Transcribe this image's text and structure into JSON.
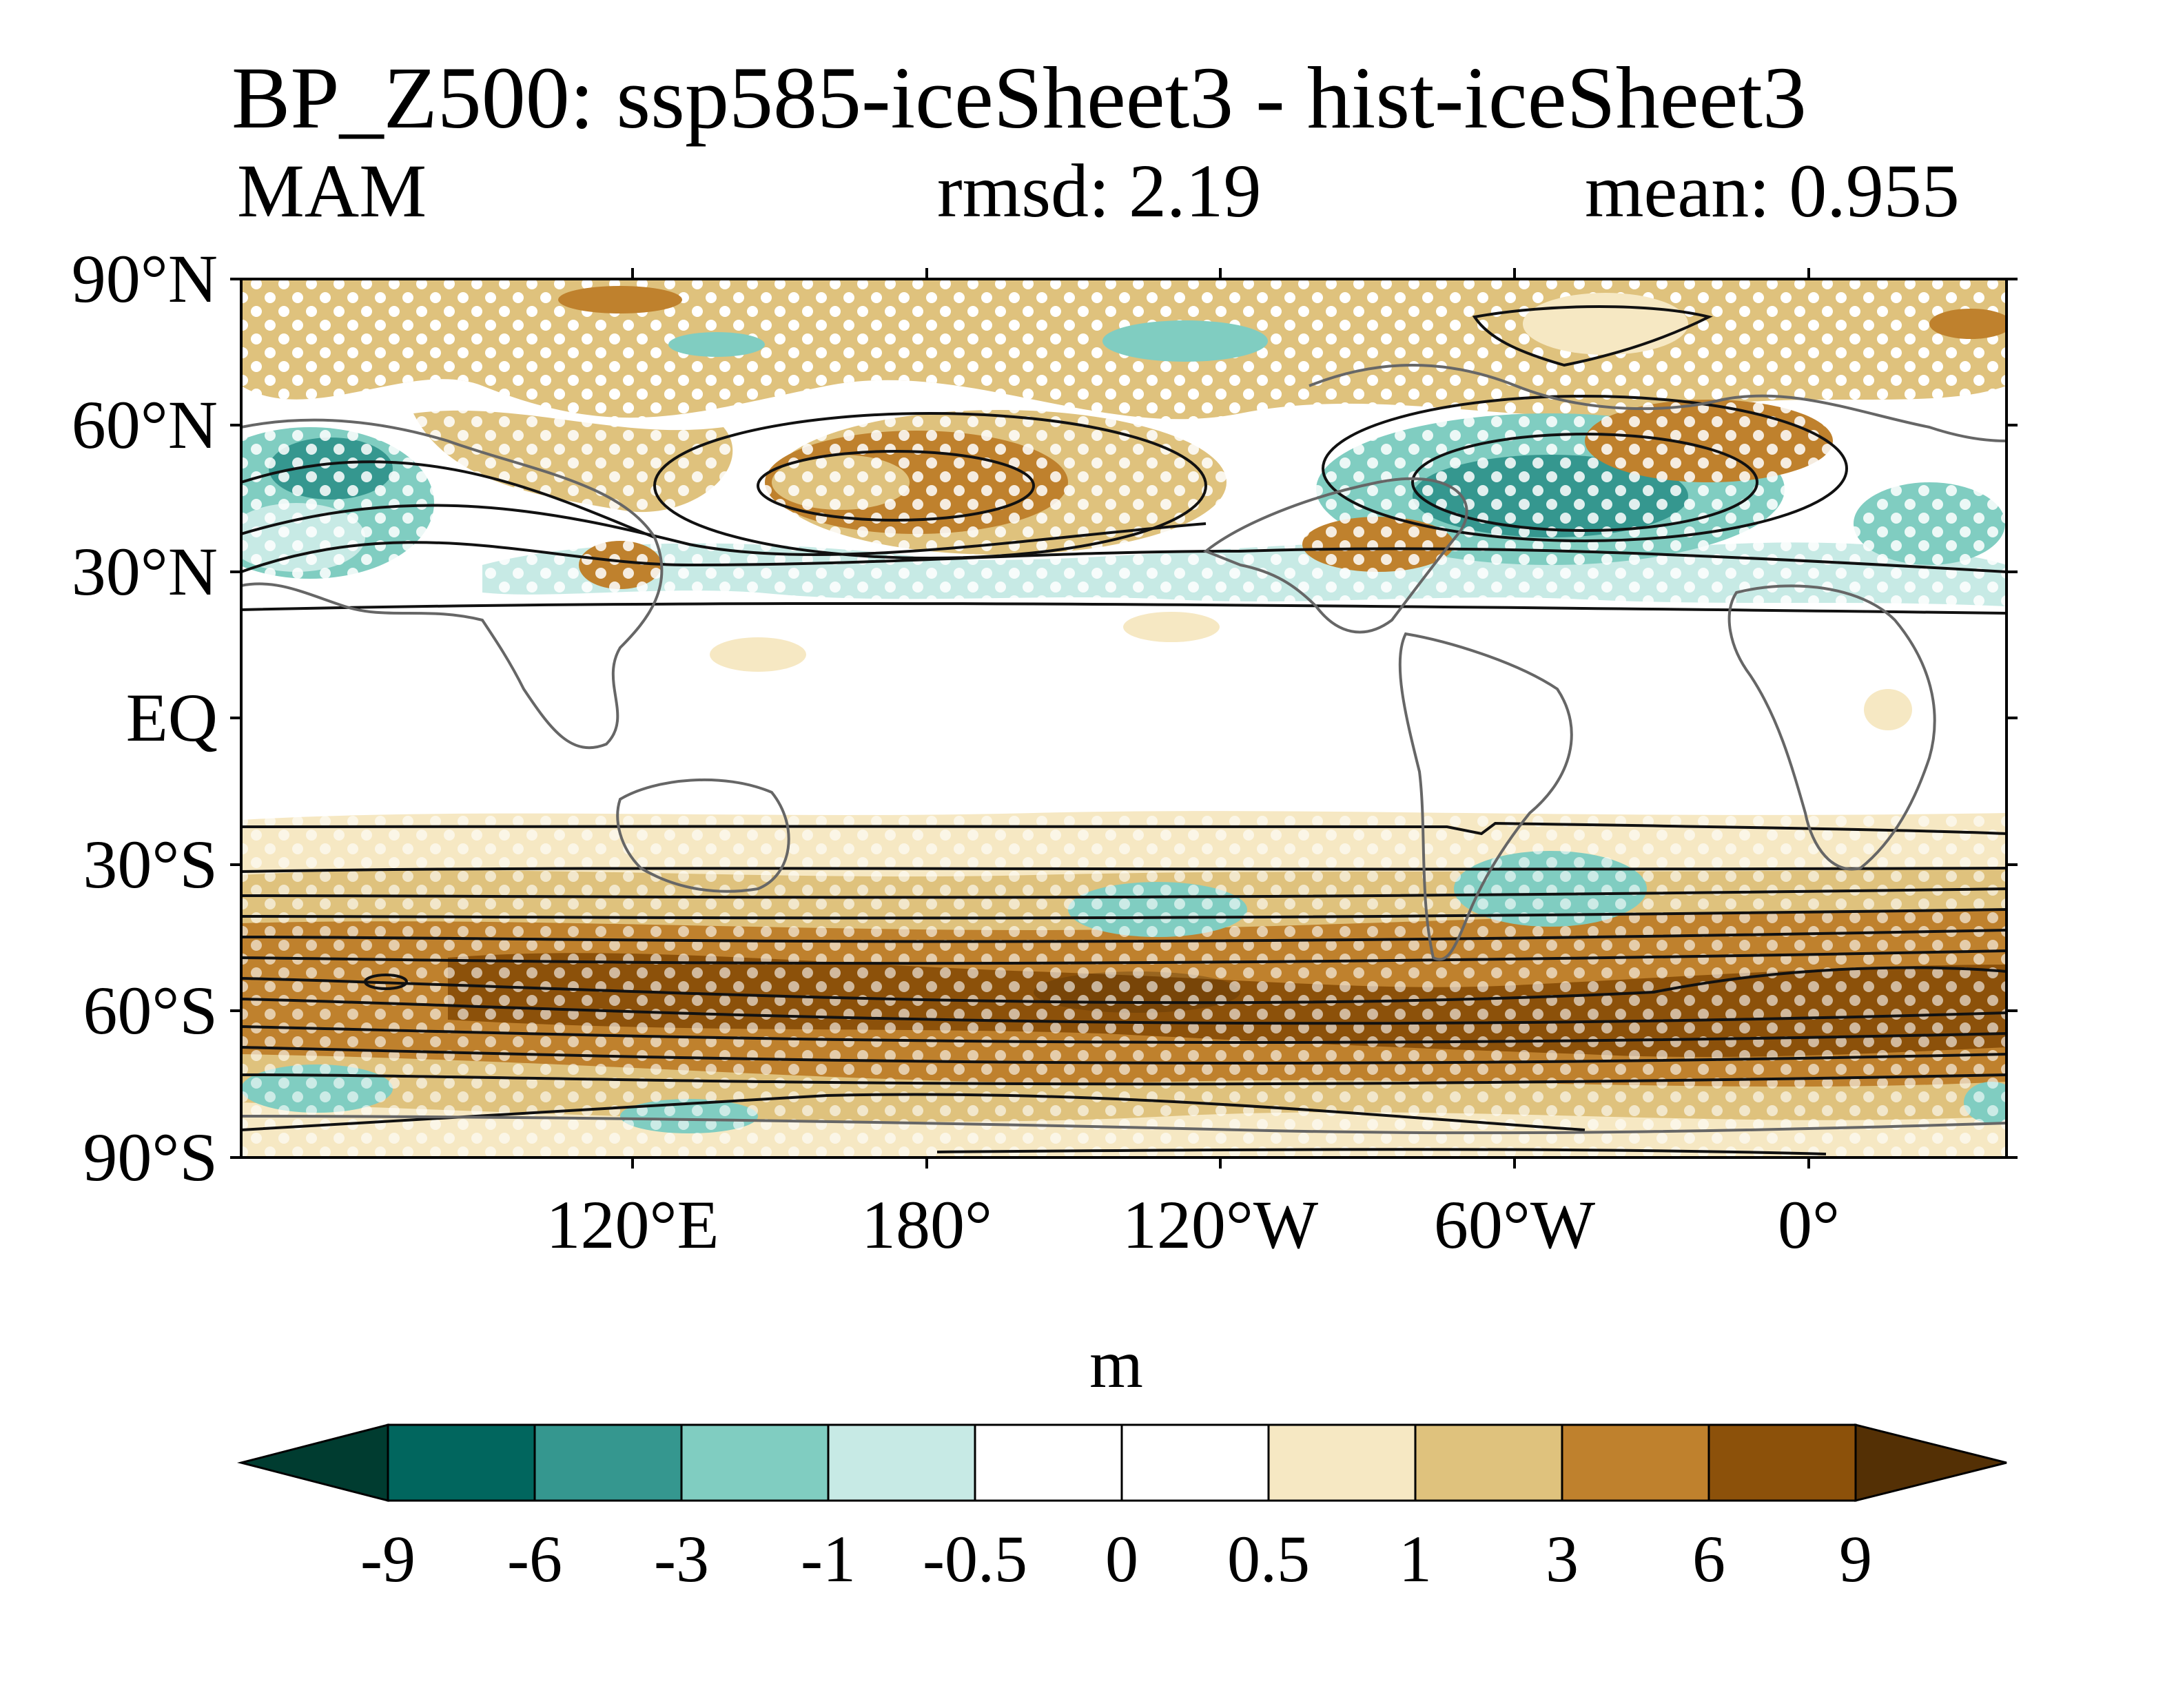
{
  "header": {
    "title": "BP_Z500: ssp585-iceSheet3 - hist-iceSheet3",
    "season": "MAM",
    "rmsd": "rmsd: 2.19",
    "mean": "mean: 0.955"
  },
  "map": {
    "projection": "cylindrical equidistant",
    "lat_labels": [
      "90°N",
      "60°N",
      "30°N",
      "EQ",
      "30°S",
      "60°S",
      "90°S"
    ],
    "lon_labels": [
      "120°E",
      "180°",
      "120°W",
      "60°W",
      "0°"
    ],
    "stippling": "white dots mark significant regions",
    "contours": "black lines: climatology"
  },
  "colorbar": {
    "units": "m",
    "levels": [
      "-9",
      "-6",
      "-3",
      "-1",
      "-0.5",
      "0",
      "0.5",
      "1",
      "3",
      "6",
      "9"
    ],
    "colors": [
      "#003c30",
      "#01665e",
      "#35978f",
      "#80cdc1",
      "#c7eae5",
      "#ffffff",
      "#ffffff",
      "#f6e8c3",
      "#dfc27d",
      "#bf812d",
      "#8c510a",
      "#543005"
    ]
  }
}
